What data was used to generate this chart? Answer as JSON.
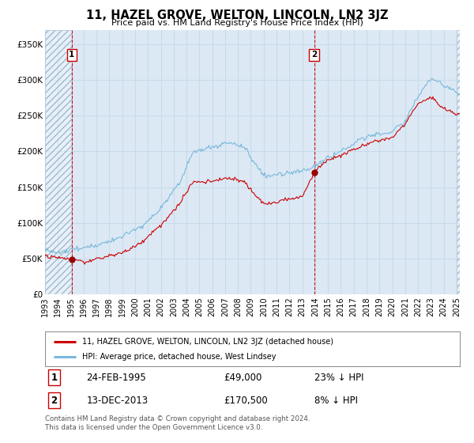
{
  "title": "11, HAZEL GROVE, WELTON, LINCOLN, LN2 3JZ",
  "subtitle": "Price paid vs. HM Land Registry's House Price Index (HPI)",
  "legend_property": "11, HAZEL GROVE, WELTON, LINCOLN, LN2 3JZ (detached house)",
  "legend_hpi": "HPI: Average price, detached house, West Lindsey",
  "transaction1_date": "24-FEB-1995",
  "transaction1_price": 49000,
  "transaction1_label": "23% ↓ HPI",
  "transaction2_date": "13-DEC-2013",
  "transaction2_price": 170500,
  "transaction2_label": "8% ↓ HPI",
  "ytick_values": [
    0,
    50000,
    100000,
    150000,
    200000,
    250000,
    300000,
    350000
  ],
  "ylim": [
    0,
    370000
  ],
  "background_color": "#dce9f5",
  "line_color_hpi": "#7ab8d9",
  "line_color_property": "#cc0000",
  "grid_color": "#c8daea",
  "footer_text": "Contains HM Land Registry data © Crown copyright and database right 2024.\nThis data is licensed under the Open Government Licence v3.0.",
  "annotation_box_color": "#cc0000"
}
